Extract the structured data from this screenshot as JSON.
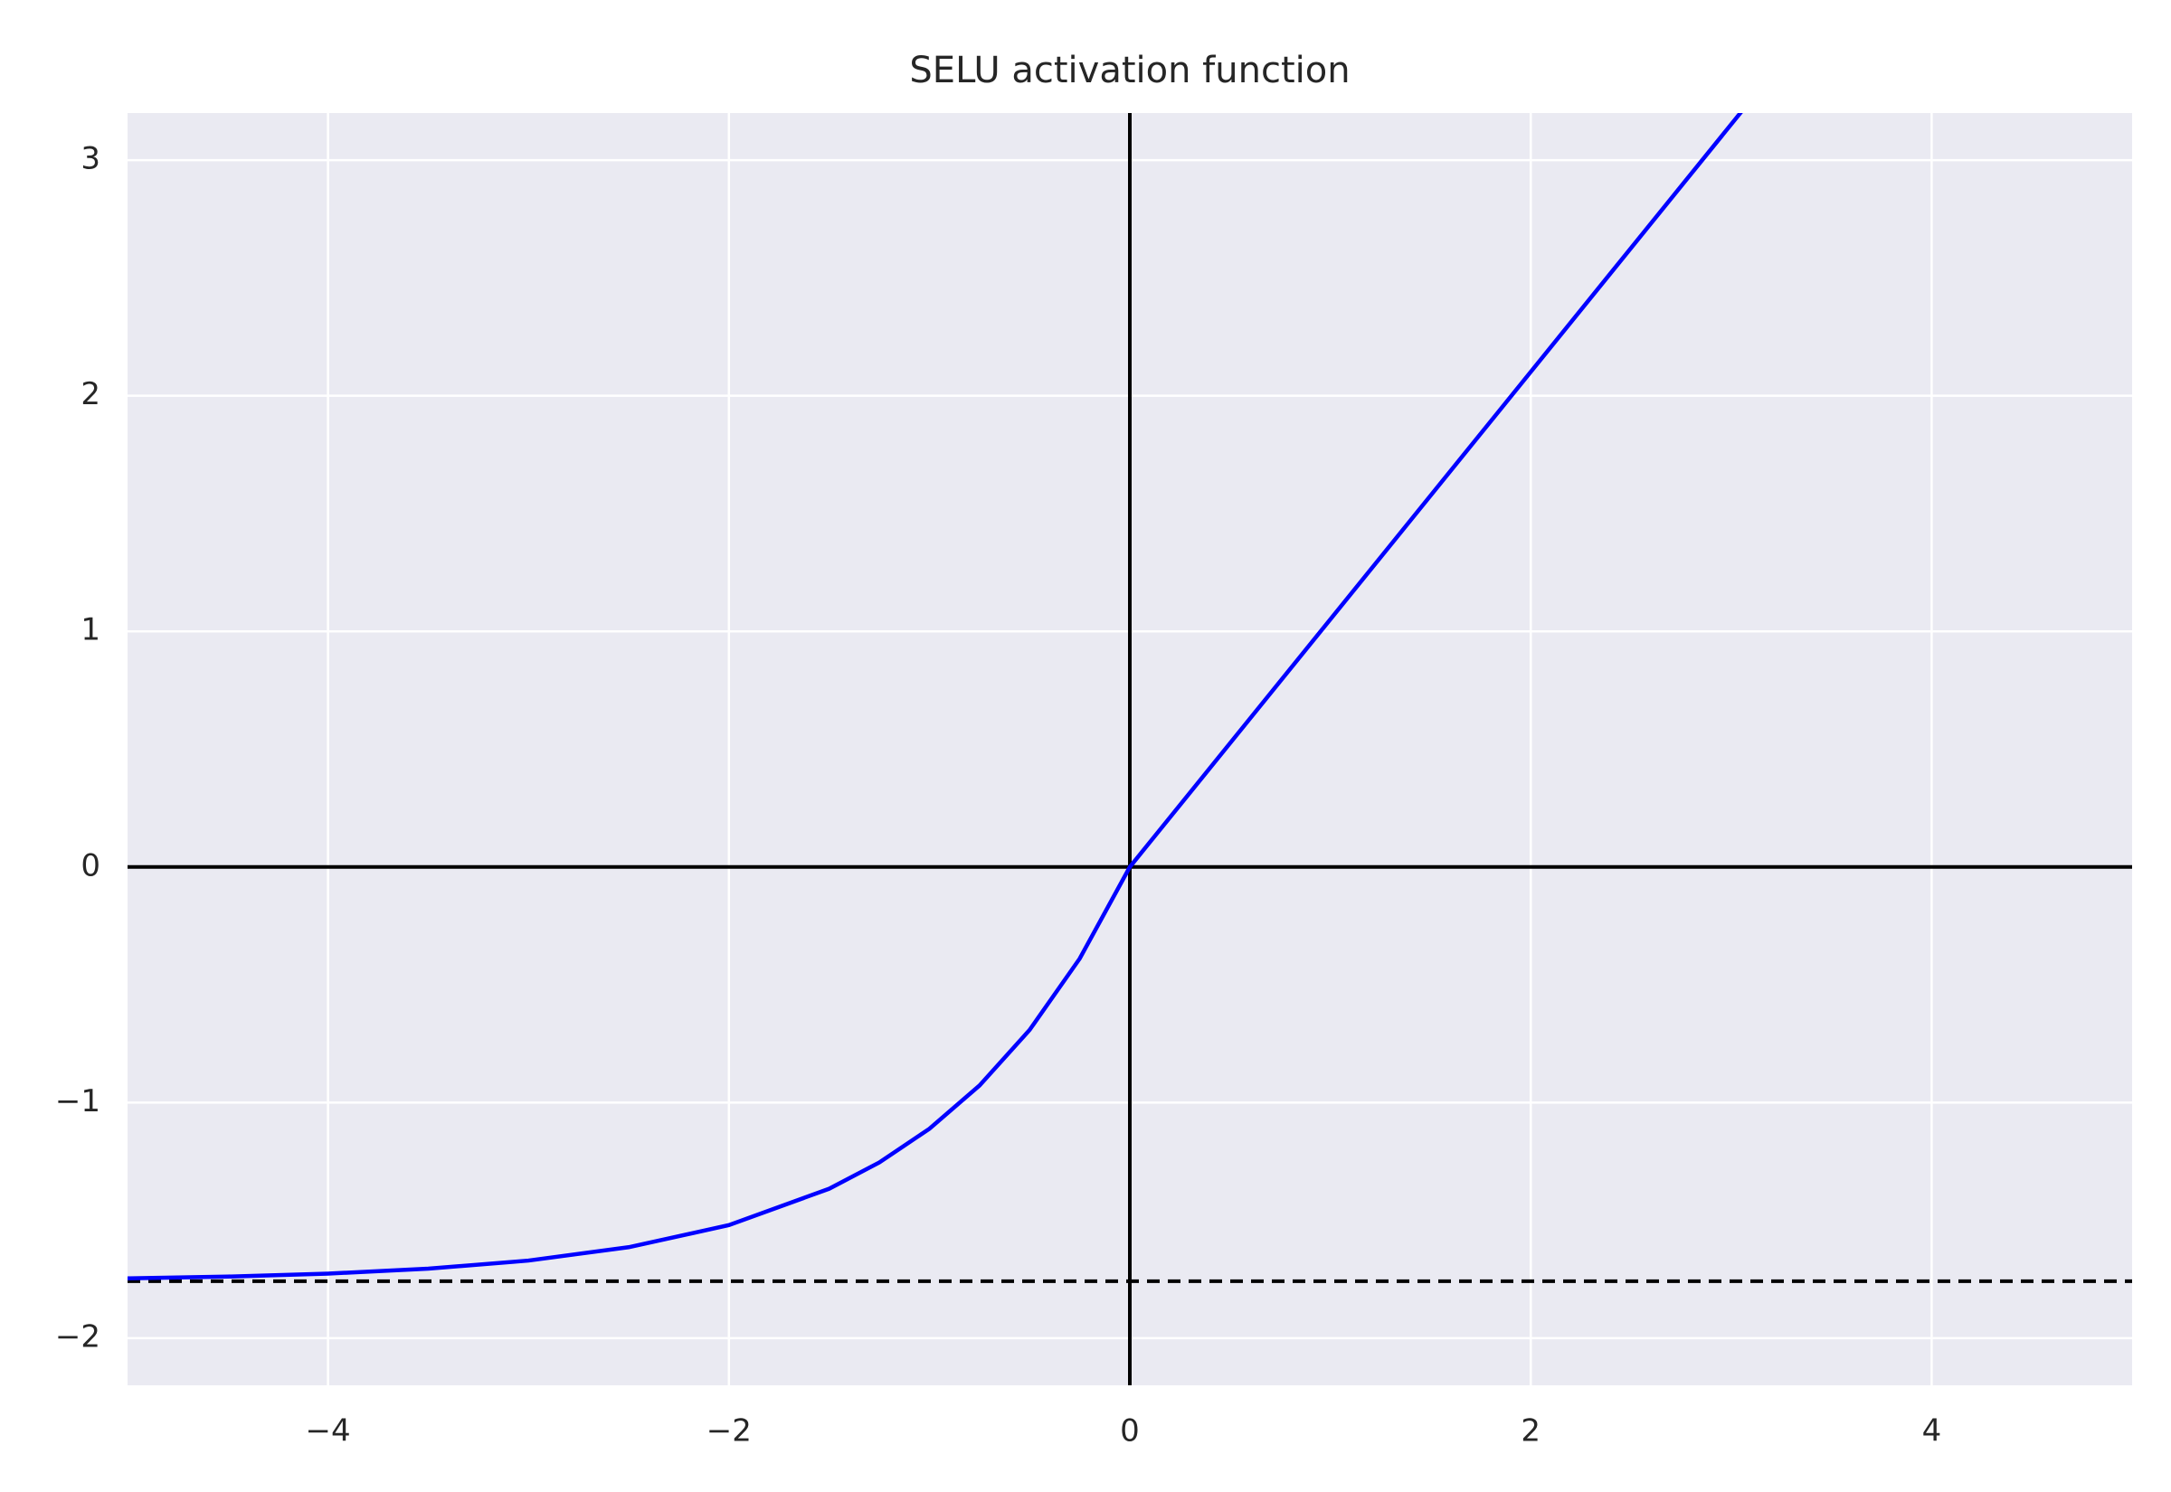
{
  "chart_data": {
    "type": "line",
    "title": "SELU activation function",
    "x": [
      -5,
      -4.5,
      -4,
      -3.5,
      -3,
      -2.5,
      -2,
      -1.5,
      -1.25,
      -1,
      -0.75,
      -0.5,
      -0.25,
      0,
      5
    ],
    "series": [
      {
        "color": "#0000ff",
        "values": [
          -1.7463,
          -1.7386,
          -1.7259,
          -1.705,
          -1.6706,
          -1.6138,
          -1.5202,
          -1.3658,
          -1.2544,
          -1.1113,
          -0.9276,
          -0.6918,
          -0.3889,
          0,
          5.2535
        ]
      }
    ],
    "xlim": [
      -5,
      5
    ],
    "ylim": [
      -2.2,
      3.2
    ],
    "xticks": [
      {
        "value": -4,
        "label": "−4"
      },
      {
        "value": -2,
        "label": "−2"
      },
      0,
      2,
      4
    ],
    "yticks": [
      {
        "value": -2,
        "label": "−2"
      },
      {
        "value": -1,
        "label": "−1"
      },
      0,
      1,
      2,
      3
    ],
    "grid": true,
    "reference_lines": [
      {
        "axis": "y",
        "value": 0,
        "style": "solid"
      },
      {
        "axis": "x",
        "value": 0,
        "style": "solid"
      },
      {
        "axis": "y",
        "value": -1.7581,
        "style": "dashed"
      }
    ]
  }
}
